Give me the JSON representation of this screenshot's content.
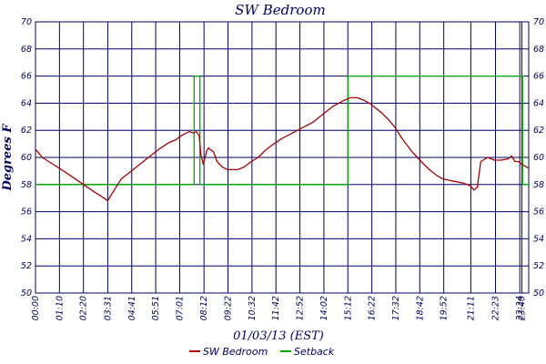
{
  "chart_data": {
    "type": "line",
    "title": "SW Bedroom",
    "xlabel": "01/03/13 (EST)",
    "ylabel": "Degrees F",
    "ylim": [
      50,
      70
    ],
    "y_ticks": [
      50,
      52,
      54,
      56,
      58,
      60,
      62,
      64,
      66,
      68,
      70
    ],
    "x_range_minutes": [
      0,
      1440
    ],
    "x_tick_labels": [
      "00:00",
      "01:10",
      "02:20",
      "03:31",
      "04:41",
      "05:51",
      "07:01",
      "08:12",
      "09:22",
      "10:32",
      "11:42",
      "12:52",
      "14:02",
      "15:12",
      "16:22",
      "17:32",
      "18:42",
      "19:52",
      "21:11",
      "22:23",
      "23:34",
      "23:40"
    ],
    "x_ticks_minutes": [
      0,
      70,
      140,
      211,
      281,
      351,
      421,
      492,
      562,
      632,
      702,
      772,
      842,
      912,
      982,
      1052,
      1122,
      1192,
      1271,
      1343,
      1414,
      1420
    ],
    "grid": true,
    "legend_position": "bottom",
    "colors": {
      "axis": "#000066",
      "grid": "#000066"
    },
    "series": [
      {
        "name": "SW Bedroom",
        "color": "#aa0000",
        "x": [
          0,
          20,
          45,
          70,
          100,
          140,
          175,
          200,
          211,
          220,
          235,
          250,
          280,
          320,
          360,
          390,
          410,
          425,
          440,
          450,
          460,
          470,
          478,
          483,
          490,
          500,
          505,
          520,
          530,
          545,
          560,
          575,
          590,
          610,
          630,
          650,
          670,
          690,
          720,
          750,
          780,
          810,
          840,
          870,
          900,
          920,
          940,
          960,
          975,
          990,
          1010,
          1030,
          1050,
          1070,
          1100,
          1130,
          1150,
          1170,
          1190,
          1210,
          1230,
          1250,
          1270,
          1280,
          1290,
          1300,
          1320,
          1340,
          1360,
          1380,
          1390,
          1400,
          1410,
          1420,
          1440
        ],
        "y": [
          60.6,
          60.0,
          59.6,
          59.2,
          58.7,
          58.0,
          57.4,
          57.0,
          56.8,
          57.2,
          57.8,
          58.4,
          59.0,
          59.8,
          60.6,
          61.1,
          61.3,
          61.6,
          61.8,
          61.9,
          61.8,
          61.9,
          61.6,
          60.2,
          59.5,
          60.5,
          60.7,
          60.4,
          59.7,
          59.3,
          59.1,
          59.1,
          59.1,
          59.3,
          59.7,
          60.0,
          60.5,
          60.9,
          61.4,
          61.8,
          62.2,
          62.6,
          63.2,
          63.8,
          64.2,
          64.4,
          64.4,
          64.2,
          64.0,
          63.7,
          63.3,
          62.8,
          62.2,
          61.4,
          60.4,
          59.6,
          59.1,
          58.7,
          58.4,
          58.3,
          58.2,
          58.1,
          57.9,
          57.6,
          57.8,
          59.7,
          60.0,
          59.8,
          59.8,
          59.9,
          60.1,
          59.7,
          59.7,
          59.5,
          59.2
        ]
      },
      {
        "name": "Setback",
        "color": "#00aa00",
        "x": [
          0,
          463,
          463,
          480,
          480,
          912,
          912,
          1422,
          1422,
          1440
        ],
        "y": [
          58,
          58,
          66,
          66,
          58,
          58,
          66,
          66,
          58,
          58
        ]
      }
    ]
  }
}
